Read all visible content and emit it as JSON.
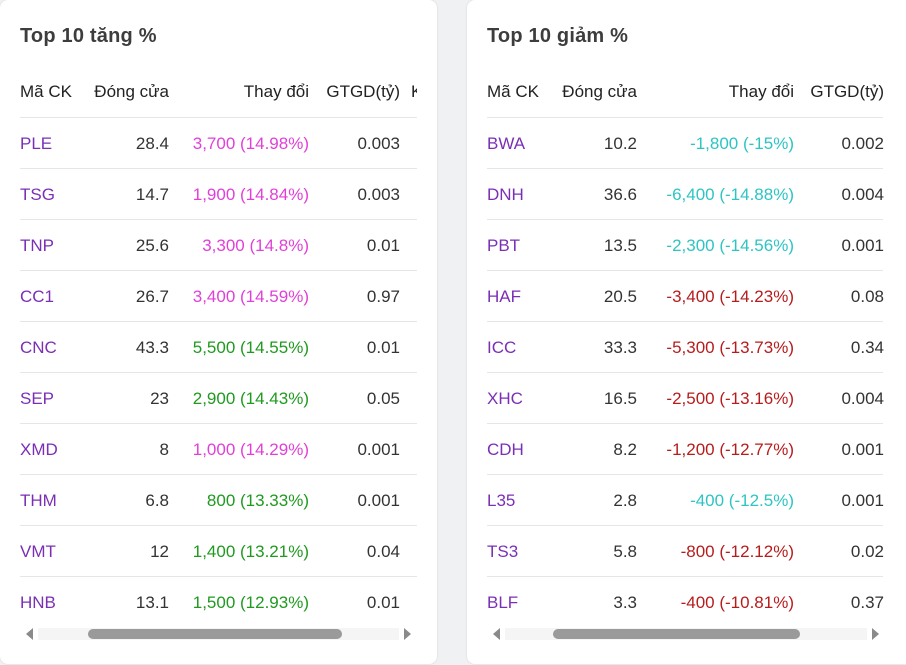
{
  "colors": {
    "ceiling": "#e13fd8",
    "up": "#1f9a1f",
    "floor": "#2ec4c4",
    "down": "#b71c1c",
    "symbol": "#7a2fb5"
  },
  "columns": {
    "symbol": "Mã CK",
    "close": "Đóng cửa",
    "change": "Thay đổi",
    "value": "GTGD(tỷ)",
    "extra": "K"
  },
  "gainers": {
    "title": "Top 10 tăng %",
    "rows": [
      {
        "symbol": "PLE",
        "close": "28.4",
        "change": "3,700 (14.98%)",
        "value": "0.003",
        "status": "ceiling"
      },
      {
        "symbol": "TSG",
        "close": "14.7",
        "change": "1,900 (14.84%)",
        "value": "0.003",
        "status": "ceiling"
      },
      {
        "symbol": "TNP",
        "close": "25.6",
        "change": "3,300 (14.8%)",
        "value": "0.01",
        "status": "ceiling"
      },
      {
        "symbol": "CC1",
        "close": "26.7",
        "change": "3,400 (14.59%)",
        "value": "0.97",
        "status": "ceiling"
      },
      {
        "symbol": "CNC",
        "close": "43.3",
        "change": "5,500 (14.55%)",
        "value": "0.01",
        "status": "up"
      },
      {
        "symbol": "SEP",
        "close": "23",
        "change": "2,900 (14.43%)",
        "value": "0.05",
        "status": "up"
      },
      {
        "symbol": "XMD",
        "close": "8",
        "change": "1,000 (14.29%)",
        "value": "0.001",
        "status": "ceiling"
      },
      {
        "symbol": "THM",
        "close": "6.8",
        "change": "800 (13.33%)",
        "value": "0.001",
        "status": "up"
      },
      {
        "symbol": "VMT",
        "close": "12",
        "change": "1,400 (13.21%)",
        "value": "0.04",
        "status": "up"
      },
      {
        "symbol": "HNB",
        "close": "13.1",
        "change": "1,500 (12.93%)",
        "value": "0.01",
        "status": "up"
      }
    ]
  },
  "losers": {
    "title": "Top 10 giảm %",
    "rows": [
      {
        "symbol": "BWA",
        "close": "10.2",
        "change": "-1,800 (-15%)",
        "value": "0.002",
        "status": "floor"
      },
      {
        "symbol": "DNH",
        "close": "36.6",
        "change": "-6,400 (-14.88%)",
        "value": "0.004",
        "status": "floor"
      },
      {
        "symbol": "PBT",
        "close": "13.5",
        "change": "-2,300 (-14.56%)",
        "value": "0.001",
        "status": "floor"
      },
      {
        "symbol": "HAF",
        "close": "20.5",
        "change": "-3,400 (-14.23%)",
        "value": "0.08",
        "status": "down"
      },
      {
        "symbol": "ICC",
        "close": "33.3",
        "change": "-5,300 (-13.73%)",
        "value": "0.34",
        "status": "down"
      },
      {
        "symbol": "XHC",
        "close": "16.5",
        "change": "-2,500 (-13.16%)",
        "value": "0.004",
        "status": "down"
      },
      {
        "symbol": "CDH",
        "close": "8.2",
        "change": "-1,200 (-12.77%)",
        "value": "0.001",
        "status": "down"
      },
      {
        "symbol": "L35",
        "close": "2.8",
        "change": "-400 (-12.5%)",
        "value": "0.001",
        "status": "floor"
      },
      {
        "symbol": "TS3",
        "close": "5.8",
        "change": "-800 (-12.12%)",
        "value": "0.02",
        "status": "down"
      },
      {
        "symbol": "BLF",
        "close": "3.3",
        "change": "-400 (-10.81%)",
        "value": "0.37",
        "status": "down"
      }
    ]
  },
  "icons": {
    "scroll_left": "chevron-left-icon",
    "scroll_right": "chevron-right-icon"
  }
}
